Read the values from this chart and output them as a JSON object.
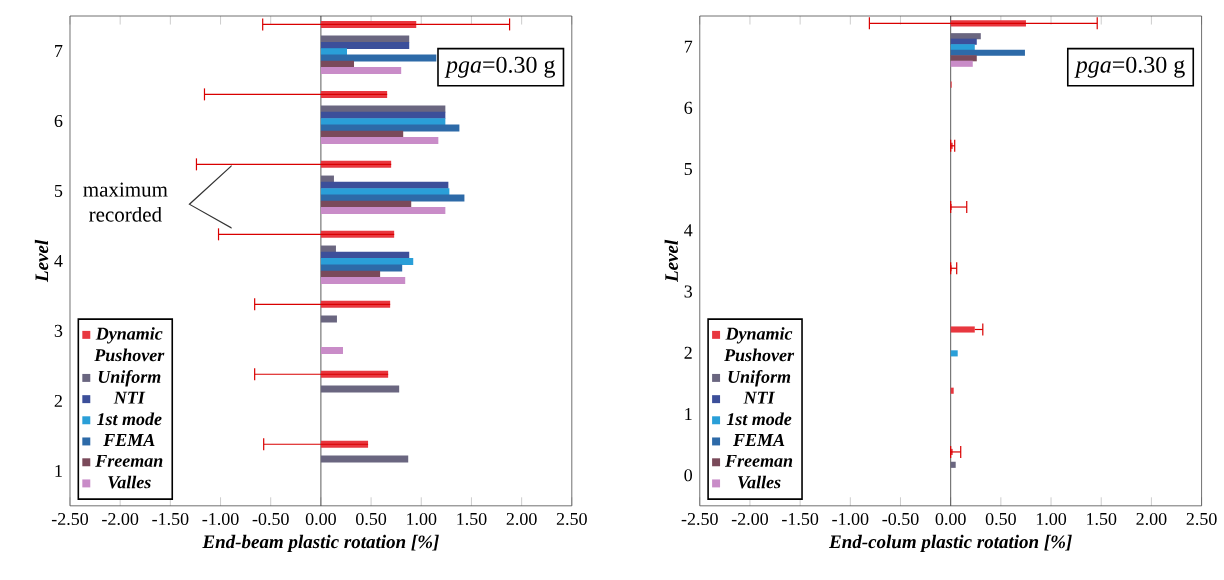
{
  "chart_data": [
    {
      "type": "bar",
      "orientation": "horizontal",
      "xlabel": "End-beam plastic rotation [%]",
      "ylabel": "Level",
      "legend_title": "Pushover",
      "legend": "bottom left",
      "annotations": [
        "*pga*=0.30 g",
        "maximum recorded"
      ],
      "categories": [
        "7",
        "6",
        "5",
        "4",
        "3",
        "2",
        "1"
      ],
      "xlim": [
        -2.5,
        2.5
      ],
      "xticks": [
        {
          "value": -2.5,
          "label": "-2.50"
        },
        {
          "value": -2,
          "label": "-2.00"
        },
        {
          "value": -1.5,
          "label": "-1.50"
        },
        {
          "value": -1,
          "label": "-1.00"
        },
        {
          "value": -0.5,
          "label": "-0.50"
        },
        {
          "value": 0,
          "label": "0.00"
        },
        {
          "value": 0.5,
          "label": "0.50"
        },
        {
          "value": 1,
          "label": "1.00"
        },
        {
          "value": 1.5,
          "label": "1.50"
        },
        {
          "value": 2,
          "label": "2.00"
        },
        {
          "value": 2.5,
          "label": "2.50"
        }
      ],
      "series": [
        {
          "name": "Dynamic",
          "color": "#e8373f",
          "values": [
            0.95,
            0.66,
            0.7,
            0.73,
            0.69,
            0.67,
            0.47
          ],
          "errors": [
            [
              -0.58,
              1.88
            ],
            [
              -1.16,
              0.66
            ],
            [
              -1.24,
              0.7
            ],
            [
              -1.02,
              0.73
            ],
            [
              -0.66,
              0.69
            ],
            [
              -0.66,
              0.67
            ],
            [
              -0.57,
              0.47
            ]
          ]
        },
        {
          "name": "Uniform",
          "color": "#6a6680",
          "values": [
            0.88,
            1.24,
            0.13,
            0.15,
            0.16,
            0.78,
            0.87
          ]
        },
        {
          "name": "NTI",
          "color": "#3c4f9a",
          "values": [
            0.88,
            1.24,
            1.27,
            0.88,
            null,
            null,
            null
          ]
        },
        {
          "name": "1st mode",
          "color": "#2a9fd8",
          "values": [
            0.26,
            1.24,
            1.28,
            0.92,
            null,
            null,
            null
          ]
        },
        {
          "name": "FEMA",
          "color": "#2d6aa8",
          "values": [
            1.15,
            1.38,
            1.43,
            0.81,
            null,
            null,
            null
          ]
        },
        {
          "name": "Freeman",
          "color": "#7a4a5a",
          "values": [
            0.33,
            0.82,
            0.9,
            0.59,
            null,
            null,
            null
          ]
        },
        {
          "name": "Valles",
          "color": "#c98cc8",
          "values": [
            0.8,
            1.17,
            1.24,
            0.84,
            0.22,
            null,
            null
          ]
        }
      ]
    },
    {
      "type": "bar",
      "orientation": "horizontal",
      "xlabel": "End-colum plastic rotation [%]",
      "ylabel": "Level",
      "legend_title": "Pushover",
      "legend": "bottom left",
      "annotations": [
        "*pga*=0.30 g"
      ],
      "categories": [
        "7",
        "6",
        "5",
        "4",
        "3",
        "2",
        "1",
        "0"
      ],
      "xlim": [
        -2.5,
        2.5
      ],
      "xticks": [
        {
          "value": -2.5,
          "label": "-2.50"
        },
        {
          "value": -2,
          "label": "-2.00"
        },
        {
          "value": -1.5,
          "label": "-1.50"
        },
        {
          "value": -1,
          "label": "-1.00"
        },
        {
          "value": -0.5,
          "label": "-0.50"
        },
        {
          "value": 0,
          "label": "0.00"
        },
        {
          "value": 0.5,
          "label": "0.50"
        },
        {
          "value": 1,
          "label": "1.00"
        },
        {
          "value": 1.5,
          "label": "1.50"
        },
        {
          "value": 2,
          "label": "2.00"
        },
        {
          "value": 2.5,
          "label": "2.50"
        }
      ],
      "series": [
        {
          "name": "Dynamic",
          "color": "#e8373f",
          "values": [
            0.75,
            0.01,
            0.02,
            0.01,
            0.01,
            0.24,
            0.03,
            0.02
          ],
          "errors": [
            [
              -0.81,
              1.46
            ],
            null,
            [
              0.0,
              0.04
            ],
            [
              0.0,
              0.16
            ],
            [
              0.0,
              0.06
            ],
            [
              0.24,
              0.32
            ],
            null,
            [
              0.0,
              0.1
            ]
          ]
        },
        {
          "name": "Uniform",
          "color": "#6a6680",
          "values": [
            0.3,
            null,
            null,
            null,
            null,
            null,
            null,
            0.05
          ]
        },
        {
          "name": "NTI",
          "color": "#3c4f9a",
          "values": [
            0.26,
            null,
            null,
            null,
            null,
            null,
            null,
            null
          ]
        },
        {
          "name": "1st mode",
          "color": "#2a9fd8",
          "values": [
            0.24,
            null,
            null,
            null,
            null,
            0.07,
            null,
            null
          ]
        },
        {
          "name": "FEMA",
          "color": "#2d6aa8",
          "values": [
            0.74,
            null,
            null,
            null,
            null,
            null,
            null,
            null
          ]
        },
        {
          "name": "Freeman",
          "color": "#7a4a5a",
          "values": [
            0.26,
            null,
            null,
            null,
            null,
            null,
            null,
            null
          ]
        },
        {
          "name": "Valles",
          "color": "#c98cc8",
          "values": [
            0.22,
            null,
            null,
            null,
            null,
            null,
            null,
            null
          ]
        }
      ]
    }
  ]
}
